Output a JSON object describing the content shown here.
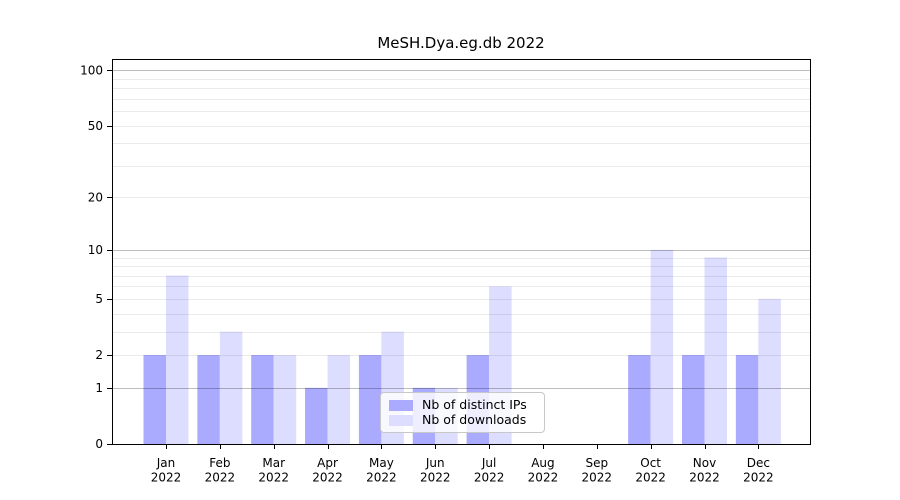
{
  "chart_data": {
    "type": "bar",
    "title": "MeSH.Dya.eg.db 2022",
    "categories": [
      "Jan 2022",
      "Feb 2022",
      "Mar 2022",
      "Apr 2022",
      "May 2022",
      "Jun 2022",
      "Jul 2022",
      "Aug 2022",
      "Sep 2022",
      "Oct 2022",
      "Nov 2022",
      "Dec 2022"
    ],
    "series": [
      {
        "name": "Nb of distinct IPs",
        "color": "#aaaaff",
        "values": [
          2,
          2,
          2,
          1,
          2,
          1,
          2,
          0,
          0,
          2,
          2,
          2
        ]
      },
      {
        "name": "Nb of downloads",
        "color": "#ddddff",
        "values": [
          7,
          3,
          2,
          2,
          3,
          1,
          6,
          0,
          0,
          10,
          9,
          5
        ]
      }
    ],
    "xlabel": "",
    "ylabel": "",
    "yscale": "log1p",
    "yticks": [
      0,
      1,
      2,
      5,
      10,
      20,
      50,
      100
    ],
    "ylim": [
      0,
      115
    ],
    "grid": true,
    "legend_position": "lower center"
  },
  "colors": {
    "axis": "#000000",
    "major_grid": "rgba(0,0,0,0.26)",
    "minor_grid": "rgba(0,0,0,0.08)",
    "text": "#000000"
  }
}
